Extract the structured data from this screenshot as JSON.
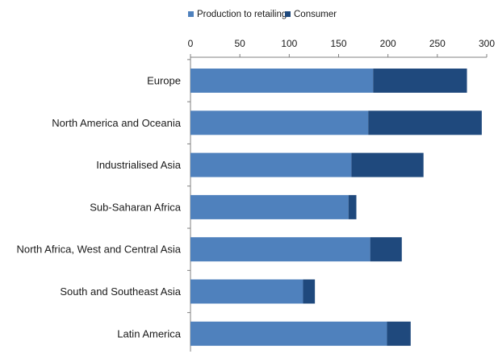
{
  "chart_data": {
    "type": "bar",
    "orientation": "horizontal",
    "stacked": true,
    "title": "",
    "xlabel": "",
    "ylabel": "",
    "xlim": [
      0,
      300
    ],
    "x_ticks": [
      0,
      50,
      100,
      150,
      200,
      250,
      300
    ],
    "x_axis_position": "top",
    "grid": false,
    "legend_position": "top",
    "categories": [
      "Europe",
      "North America and Oceania",
      "Industrialised Asia",
      "Sub-Saharan Africa",
      "North Africa, West and Central Asia",
      "South and Southeast Asia",
      "Latin America"
    ],
    "series": [
      {
        "name": "Production to retailing",
        "color": "#4f81bd",
        "values": [
          185,
          180,
          163,
          160,
          182,
          114,
          199
        ]
      },
      {
        "name": "Consumer",
        "color": "#1f497d",
        "values": [
          95,
          115,
          73,
          8,
          32,
          12,
          24
        ]
      }
    ]
  }
}
